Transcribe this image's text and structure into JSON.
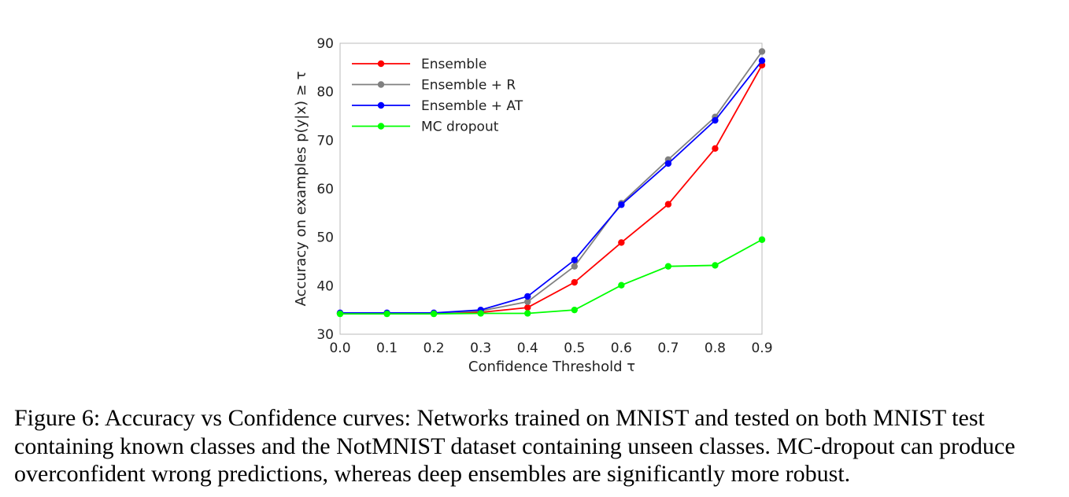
{
  "chart_data": {
    "type": "line",
    "xlabel": "Confidence Threshold τ",
    "ylabel": "Accuracy on examples p(y|x) ≥ τ",
    "x": [
      0.0,
      0.1,
      0.2,
      0.3,
      0.4,
      0.5,
      0.6,
      0.7,
      0.8,
      0.9
    ],
    "xticks": [
      "0.0",
      "0.1",
      "0.2",
      "0.3",
      "0.4",
      "0.5",
      "0.6",
      "0.7",
      "0.8",
      "0.9"
    ],
    "yticks": [
      "30",
      "40",
      "50",
      "60",
      "70",
      "80",
      "90"
    ],
    "xlim": [
      0.0,
      0.9
    ],
    "ylim": [
      30,
      90
    ],
    "grid": false,
    "legend_position": "top-left",
    "series": [
      {
        "name": "Ensemble",
        "color": "#ff0000",
        "values": [
          34.3,
          34.3,
          34.3,
          34.5,
          35.5,
          40.7,
          48.9,
          56.8,
          68.3,
          85.5
        ]
      },
      {
        "name": "Ensemble + R",
        "color": "#808080",
        "values": [
          34.3,
          34.3,
          34.3,
          34.8,
          36.7,
          44.0,
          57.0,
          66.0,
          74.8,
          88.3
        ]
      },
      {
        "name": "Ensemble + AT",
        "color": "#0000ff",
        "values": [
          34.4,
          34.4,
          34.4,
          35.0,
          37.8,
          45.3,
          56.7,
          65.2,
          74.1,
          86.4
        ]
      },
      {
        "name": "MC dropout",
        "color": "#00ff00",
        "values": [
          34.2,
          34.2,
          34.2,
          34.3,
          34.3,
          35.0,
          40.1,
          44.0,
          44.2,
          49.5
        ]
      }
    ]
  },
  "caption": "Figure 6: Accuracy vs Confidence curves: Networks trained on MNIST and tested on both MNIST test containing known classes and the NotMNIST dataset containing unseen classes. MC-dropout can produce overconfident wrong predictions, whereas deep ensembles are significantly more robust."
}
